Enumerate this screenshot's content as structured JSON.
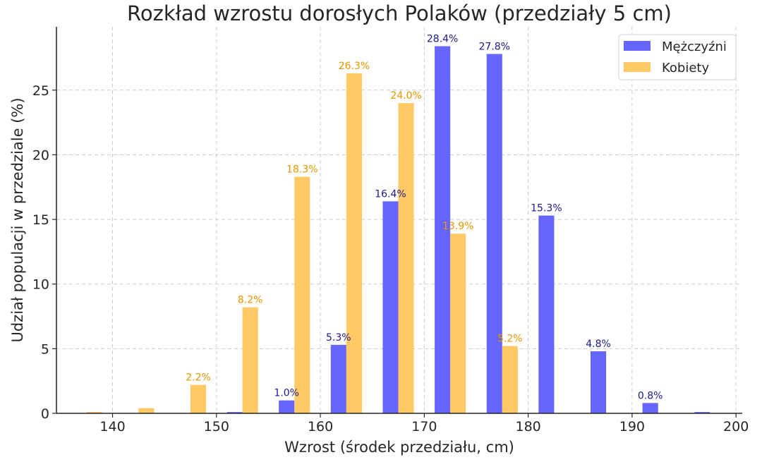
{
  "chart_data": {
    "type": "bar",
    "title": "Rozkład wzrostu dorosłych Polaków (przedziały 5 cm)",
    "xlabel": "Wzrost (środek przedziału, cm)",
    "ylabel": "Udział populacji w przedziale (%)",
    "xlim": [
      134.6,
      200.6
    ],
    "ylim": [
      0,
      29.9
    ],
    "xticks": [
      140,
      150,
      160,
      170,
      180,
      190,
      200
    ],
    "yticks": [
      0,
      5,
      10,
      15,
      20,
      25
    ],
    "grid": true,
    "legend_position": "top-right",
    "bar_width": 1.5,
    "bin_centers": [
      137.5,
      142.5,
      147.5,
      152.5,
      157.5,
      162.5,
      167.5,
      172.5,
      177.5,
      182.5,
      187.5,
      192.5,
      197.5
    ],
    "series": [
      {
        "name": "Mężczyźni",
        "offset": -0.75,
        "color": "#6666ff",
        "label_color": "#1a1a8c",
        "values": [
          0,
          0,
          0,
          0.1,
          1.0,
          5.3,
          16.4,
          28.4,
          27.8,
          15.3,
          4.8,
          0.8,
          0.1
        ],
        "labels": [
          "",
          "",
          "",
          "",
          "1.0%",
          "5.3%",
          "16.4%",
          "28.4%",
          "27.8%",
          "15.3%",
          "4.8%",
          "0.8%",
          ""
        ]
      },
      {
        "name": "Kobiety",
        "offset": 0.75,
        "color": "#ffc966",
        "label_color": "#e69500",
        "values": [
          0.1,
          0.4,
          2.2,
          8.2,
          18.3,
          26.3,
          24.0,
          13.9,
          5.2,
          0,
          0,
          0,
          0
        ],
        "labels": [
          "",
          "",
          "2.2%",
          "8.2%",
          "18.3%",
          "26.3%",
          "24.0%",
          "13.9%",
          "5.2%",
          "",
          "",
          "",
          ""
        ]
      }
    ]
  }
}
